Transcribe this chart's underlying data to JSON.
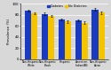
{
  "categories": [
    "Non-Hispanic\nWhite",
    "Non-Hispanic\nBlack",
    "Hispanic",
    "American\nIndian/AN",
    "Non-Hispanic\nAsian"
  ],
  "diabetes": [
    88,
    82,
    72,
    70,
    90
  ],
  "no_diabetes": [
    83,
    78,
    68,
    66,
    84
  ],
  "diabetes_color": "#1a3abf",
  "no_diabetes_color": "#f5c400",
  "ylabel": "Prevalence (%)",
  "legend_labels": [
    "Diabetes",
    "No Diabetes"
  ],
  "ylim": [
    0,
    100
  ],
  "yticks": [
    0,
    20,
    40,
    60,
    80,
    100
  ],
  "background_color": "#d8d8d8",
  "bar_width": 0.38
}
